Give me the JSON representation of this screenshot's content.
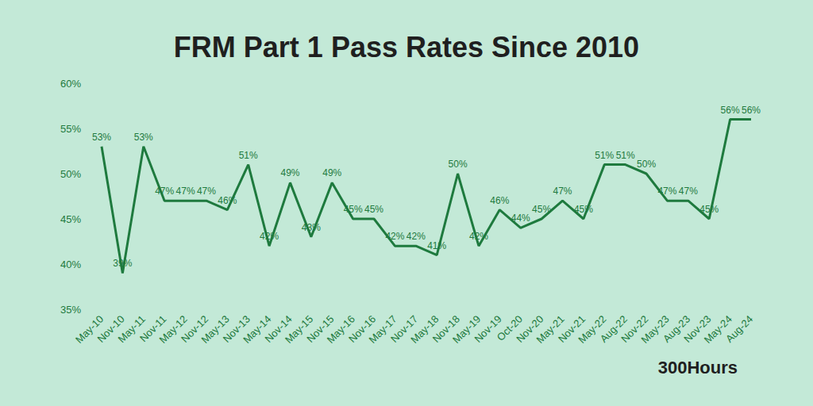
{
  "chart_data": {
    "type": "line",
    "title": "FRM Part 1 Pass Rates Since 2010",
    "categories": [
      "May-10",
      "Nov-10",
      "May-11",
      "Nov-11",
      "May-12",
      "Nov-12",
      "May-13",
      "Nov-13",
      "May-14",
      "Nov-14",
      "May-15",
      "Nov-15",
      "May-16",
      "Nov-16",
      "May-17",
      "Nov-17",
      "May-18",
      "Nov-18",
      "May-19",
      "Nov-19",
      "Oct-20",
      "Nov-20",
      "May-21",
      "Nov-21",
      "May-22",
      "Aug-22",
      "Nov-22",
      "May-23",
      "Aug-23",
      "Nov-23",
      "May-24",
      "Aug-24"
    ],
    "values": [
      53,
      39,
      53,
      47,
      47,
      47,
      46,
      51,
      42,
      49,
      43,
      49,
      45,
      45,
      42,
      42,
      41,
      50,
      42,
      46,
      44,
      45,
      47,
      45,
      51,
      51,
      50,
      47,
      47,
      45,
      56,
      56
    ],
    "value_labels": [
      "53%",
      "39%",
      "53%",
      "47%",
      "47%",
      "47%",
      "46%",
      "51%",
      "42%",
      "49%",
      "43%",
      "49%",
      "45%",
      "45%",
      "42%",
      "42%",
      "41%",
      "50%",
      "42%",
      "46%",
      "44%",
      "45%",
      "47%",
      "45%",
      "51%",
      "51%",
      "50%",
      "47%",
      "47%",
      "45%",
      "56%",
      "56%"
    ],
    "color": "#1e7a3e",
    "ylim": [
      35,
      60
    ],
    "yticks": [
      {
        "value": 35,
        "label": "35%"
      },
      {
        "value": 40,
        "label": "40%"
      },
      {
        "value": 45,
        "label": "45%"
      },
      {
        "value": 50,
        "label": "50%"
      },
      {
        "value": 55,
        "label": "55%"
      },
      {
        "value": 60,
        "label": "60%"
      }
    ],
    "grid": false,
    "data_labels": true,
    "marker": "none",
    "annotations": [
      "300Hours"
    ]
  }
}
